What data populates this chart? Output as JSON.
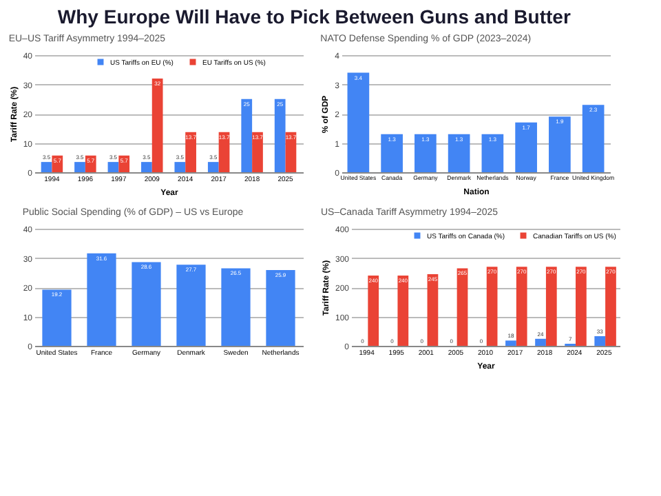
{
  "chart_data": [
    {
      "type": "bar",
      "title": "EU–US Tariff Asymmetry 1994–2025",
      "xlabel": "Year",
      "ylabel": "Tariff Rate (%)",
      "categories": [
        "1994",
        "1996",
        "1997",
        "2009",
        "2014",
        "2017",
        "2018",
        "2025"
      ],
      "series": [
        {
          "name": "US Tariffs on EU (%)",
          "color": "#4285f4",
          "values": [
            3.5,
            3.5,
            3.5,
            3.5,
            3.5,
            3.5,
            25,
            25
          ]
        },
        {
          "name": "EU Tariffs on US (%)",
          "color": "#ea4335",
          "values": [
            5.7,
            5.7,
            5.7,
            32,
            13.7,
            13.7,
            13.7,
            13.7
          ]
        }
      ],
      "ylim": [
        0,
        40
      ],
      "yticks": [
        0,
        10,
        20,
        30,
        40
      ],
      "grid": "y",
      "legend": "top",
      "data_labels": true,
      "annotations": [
        "Why Europe Will Have to Pick Between Guns and Butter"
      ]
    },
    {
      "type": "bar",
      "title": "NATO Defense Spending % of GDP (2023–2024)",
      "xlabel": "Nation",
      "ylabel": "% of GDP",
      "categories": [
        "United States",
        "Canada",
        "Germany",
        "Denmark",
        "Netherlands",
        "Norway",
        "France",
        "United Kingdom"
      ],
      "series": [
        {
          "color": "#4285f4",
          "values": [
            3.4,
            1.3,
            1.3,
            1.3,
            1.3,
            1.7,
            1.9,
            2.3
          ]
        }
      ],
      "ylim": [
        0,
        4
      ],
      "yticks": [
        0,
        1,
        2,
        3,
        4
      ],
      "grid": "y",
      "data_labels": true
    },
    {
      "type": "bar",
      "title": "Public Social Spending (% of GDP) – US vs Europe",
      "categories": [
        "United States",
        "France",
        "Germany",
        "Denmark",
        "Sweden",
        "Netherlands"
      ],
      "series": [
        {
          "color": "#4285f4",
          "values": [
            19.2,
            31.6,
            28.6,
            27.7,
            26.5,
            25.9
          ]
        }
      ],
      "ylim": [
        0,
        40
      ],
      "yticks": [
        0,
        10,
        20,
        30,
        40
      ],
      "grid": "y",
      "data_labels": true
    },
    {
      "type": "bar",
      "title": "US–Canada Tariff Asymmetry 1994–2025",
      "xlabel": "Year",
      "ylabel": "Tariff Rate (%)",
      "categories": [
        "1994",
        "1995",
        "2001",
        "2005",
        "2010",
        "2017",
        "2018",
        "2024",
        "2025"
      ],
      "series": [
        {
          "name": "US Tariffs on Canada (%)",
          "color": "#4285f4",
          "values": [
            0,
            0,
            0,
            0,
            0,
            18,
            24,
            7,
            33
          ]
        },
        {
          "name": "Canadian Tariffs on US (%)",
          "color": "#ea4335",
          "values": [
            240,
            240,
            245,
            265,
            270,
            270,
            270,
            270,
            270
          ]
        }
      ],
      "ylim": [
        0,
        400
      ],
      "yticks": [
        0,
        100,
        200,
        300,
        400
      ],
      "grid": "y",
      "legend": "top",
      "data_labels": true
    }
  ]
}
